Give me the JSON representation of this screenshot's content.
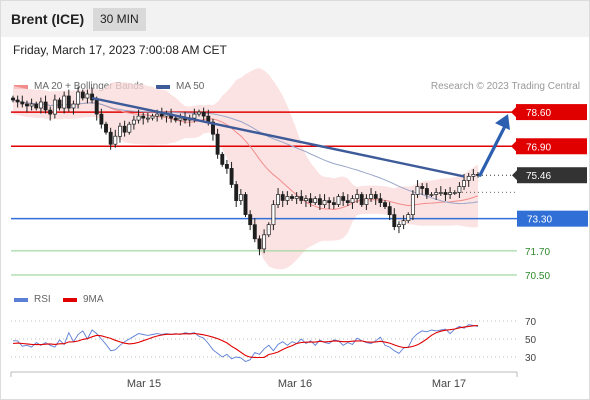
{
  "header": {
    "instrument": "Brent (ICE)",
    "timeframe": "30 MIN"
  },
  "timestamp": "Friday, March 17, 2023 7:00:08 AM CET",
  "legend": {
    "ma20_label": "MA 20 + Bollinger Bands",
    "ma50_label": "MA 50",
    "ma20_color": "#f28b8b",
    "ma50_color": "#3d5a99",
    "research": "Research © 2023 Trading Central"
  },
  "rsi_legend": {
    "rsi_label": "RSI",
    "ma_label": "9MA",
    "rsi_color": "#5c7fd6",
    "ma_color": "#e00000"
  },
  "chart_data": [
    {
      "type": "candlestick",
      "ylim": [
        70.2,
        79.4
      ],
      "x_ticks": [
        "Mar 15",
        "Mar 16",
        "Mar 17"
      ],
      "current_price": {
        "value": 75.46,
        "label": "75.46"
      },
      "levels": [
        {
          "value": 78.6,
          "label": "78.60",
          "kind": "resistance",
          "color": "#e00000"
        },
        {
          "value": 76.9,
          "label": "76.90",
          "kind": "resistance",
          "color": "#e00000"
        },
        {
          "value": 73.3,
          "label": "73.30",
          "kind": "pivot",
          "color": "#2f6fd6"
        },
        {
          "value": 71.7,
          "label": "71.70",
          "kind": "support",
          "color": "#2e8b2e"
        },
        {
          "value": 70.5,
          "label": "70.50",
          "kind": "support",
          "color": "#2e8b2e"
        }
      ],
      "closes": [
        79.2,
        79.1,
        79.0,
        78.9,
        79.0,
        78.8,
        79.1,
        78.7,
        78.5,
        79.2,
        78.8,
        79.4,
        78.8,
        79.0,
        79.6,
        79.3,
        79.5,
        79.2,
        78.5,
        78.0,
        77.6,
        77.0,
        77.4,
        77.9,
        77.6,
        78.0,
        78.2,
        78.4,
        78.3,
        78.3,
        78.4,
        78.5,
        78.4,
        78.5,
        78.3,
        78.2,
        78.3,
        78.2,
        78.3,
        78.5,
        78.6,
        78.4,
        78.1,
        77.5,
        76.5,
        76.0,
        75.8,
        75.0,
        74.2,
        74.5,
        73.5,
        73.0,
        72.3,
        71.8,
        72.5,
        73.0,
        74.0,
        74.5,
        74.2,
        74.4,
        74.3,
        74.4,
        74.2,
        74.3,
        74.1,
        74.3,
        74.0,
        74.2,
        74.1,
        74.0,
        74.4,
        74.2,
        74.1,
        74.3,
        74.5,
        74.0,
        74.3,
        74.5,
        74.3,
        74.1,
        73.9,
        73.5,
        72.9,
        73.0,
        73.2,
        73.5,
        74.5,
        74.9,
        74.8,
        74.5,
        74.5,
        74.6,
        74.6,
        74.5,
        74.6,
        74.6,
        74.9,
        75.2,
        75.4,
        75.5,
        75.46
      ],
      "trendline_start": 79.3,
      "trendline_end": 75.4,
      "forecast_target": 78.6
    },
    {
      "type": "line",
      "title": "RSI",
      "ylim": [
        20,
        80
      ],
      "y_ticks": [
        70,
        50,
        30
      ],
      "series": [
        {
          "name": "RSI",
          "values": [
            48,
            48,
            42,
            43,
            41,
            46,
            43,
            46,
            43,
            41,
            49,
            44,
            57,
            47,
            55,
            59,
            50,
            60,
            56,
            50,
            44,
            37,
            38,
            43,
            47,
            50,
            53,
            56,
            55,
            54,
            55,
            56,
            55,
            56,
            55,
            56,
            55,
            57,
            56,
            57,
            53,
            51,
            45,
            38,
            34,
            30,
            33,
            28,
            30,
            29,
            25,
            27,
            35,
            33,
            39,
            43,
            37,
            44,
            47,
            43,
            47,
            45,
            50,
            45,
            48,
            43,
            49,
            46,
            45,
            49,
            48,
            43,
            46,
            44,
            51,
            48,
            46,
            45,
            48,
            52,
            43,
            41,
            37,
            34,
            40,
            41,
            51,
            56,
            59,
            58,
            60,
            59,
            60,
            61,
            56,
            61,
            64,
            62,
            66,
            65,
            64
          ]
        },
        {
          "name": "9MA",
          "values": [
            45,
            45.5,
            45,
            44.5,
            44,
            43.8,
            43.8,
            44.2,
            44.5,
            44,
            44.7,
            44.8,
            46.8,
            46.9,
            47.8,
            49.6,
            50.4,
            52.4,
            54.1,
            53.6,
            52.1,
            50.7,
            48.6,
            46.8,
            45.3,
            44.6,
            45.1,
            46.2,
            48.1,
            49.9,
            51.8,
            53.3,
            54.4,
            55.2,
            55.2,
            55.4,
            55.4,
            55.9,
            55.7,
            56.1,
            55.4,
            54.7,
            53.5,
            52,
            50.4,
            48.2,
            45.7,
            41.9,
            38.9,
            35.2,
            31.7,
            29.9,
            29.6,
            29.4,
            29.6,
            32.8,
            33.9,
            35.6,
            38.3,
            40.7,
            42.4,
            45,
            46.1,
            46.4,
            46.5,
            46.6,
            47.4,
            46.8,
            47.1,
            47.9,
            47.6,
            47,
            47,
            47.6,
            47.9,
            47.9,
            46.8,
            46.4,
            46.8,
            47.5,
            46.5,
            45.4,
            43.4,
            41.7,
            40.6,
            40.8,
            41.8,
            43.6,
            46.6,
            50.1,
            54.1,
            57,
            58.7,
            59.8,
            60.3,
            61.1,
            62.4,
            63.2,
            64,
            64.7,
            65
          ]
        }
      ]
    }
  ]
}
